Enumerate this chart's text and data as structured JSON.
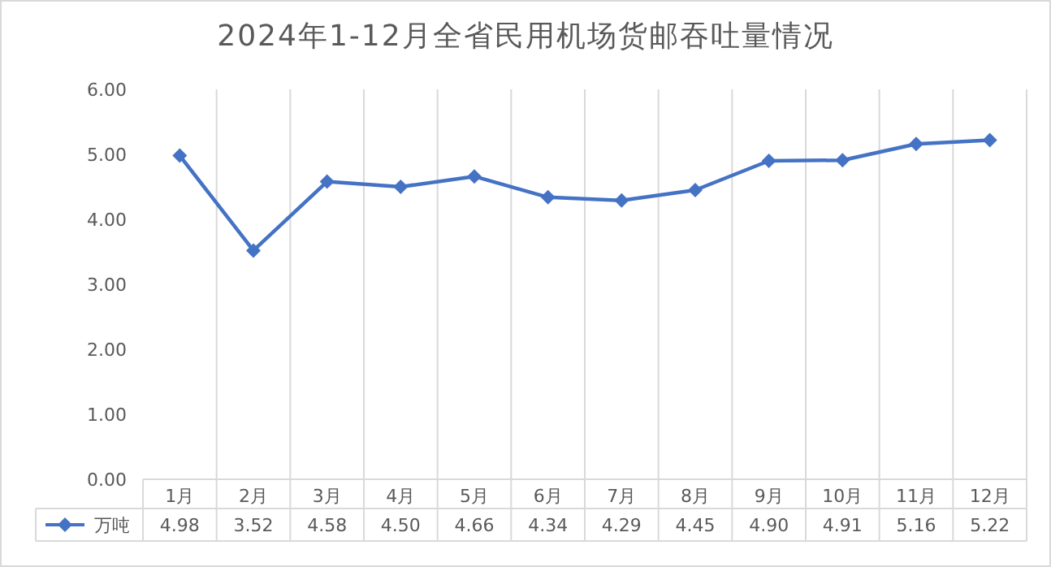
{
  "chart_data": {
    "type": "line",
    "title": "2024年1-12月全省民用机场货邮吞吐量情况",
    "categories": [
      "1月",
      "2月",
      "3月",
      "4月",
      "5月",
      "6月",
      "7月",
      "8月",
      "9月",
      "10月",
      "11月",
      "12月"
    ],
    "series": [
      {
        "name": "万吨",
        "color": "#4472c4",
        "values": [
          4.98,
          3.52,
          4.58,
          4.5,
          4.66,
          4.34,
          4.29,
          4.45,
          4.9,
          4.91,
          5.16,
          5.22
        ],
        "value_labels": [
          "4.98",
          "3.52",
          "4.58",
          "4.50",
          "4.66",
          "4.34",
          "4.29",
          "4.45",
          "4.90",
          "4.91",
          "5.16",
          "5.22"
        ]
      }
    ],
    "ylim": [
      0,
      6
    ],
    "yticks": [
      {
        "value": 0,
        "label": "0.00"
      },
      {
        "value": 1,
        "label": "1.00"
      },
      {
        "value": 2,
        "label": "2.00"
      },
      {
        "value": 3,
        "label": "3.00"
      },
      {
        "value": 4,
        "label": "4.00"
      },
      {
        "value": 5,
        "label": "5.00"
      },
      {
        "value": 6,
        "label": "6.00"
      }
    ],
    "grid": "x",
    "legend": "bottom",
    "marker": "diamond",
    "line_style": "solid"
  }
}
